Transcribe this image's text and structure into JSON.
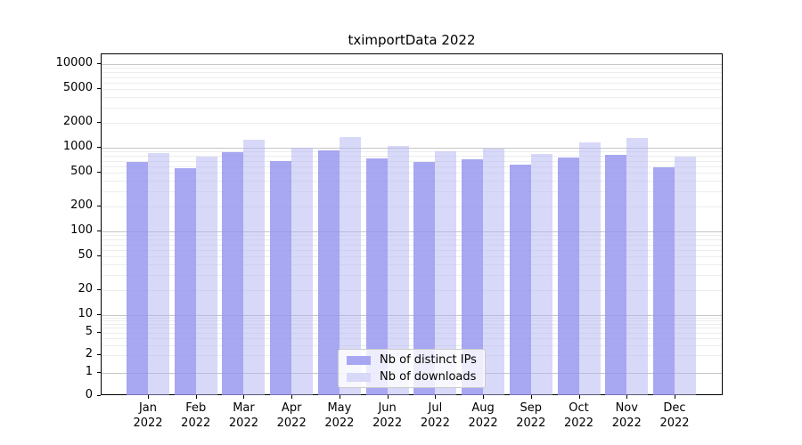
{
  "title": "tximportData 2022",
  "colors": {
    "ips_solid": "#a7a7f2",
    "ips_fill": "rgba(145,145,239,0.8)",
    "downloads_solid": "#d8d8f8",
    "downloads_fill": "rgba(177,177,241,0.5)",
    "grid_major": "#c6c6c6",
    "grid_minor": "#ededed",
    "axis": "#000000"
  },
  "legend": {
    "items": [
      {
        "label": "Nb of distinct IPs",
        "series": "ips"
      },
      {
        "label": "Nb of downloads",
        "series": "downloads"
      }
    ]
  },
  "y_axis": {
    "ticks": [
      {
        "label": "10000",
        "value": 10000
      },
      {
        "label": "5000",
        "value": 5000
      },
      {
        "label": "2000",
        "value": 2000
      },
      {
        "label": "1000",
        "value": 1000
      },
      {
        "label": "500",
        "value": 500
      },
      {
        "label": "200",
        "value": 200
      },
      {
        "label": "100",
        "value": 100
      },
      {
        "label": "50",
        "value": 50
      },
      {
        "label": "20",
        "value": 20
      },
      {
        "label": "10",
        "value": 10
      },
      {
        "label": "5",
        "value": 5
      },
      {
        "label": "2",
        "value": 2
      },
      {
        "label": "1",
        "value": 1
      },
      {
        "label": "0",
        "value": 0
      }
    ]
  },
  "x_axis": {
    "year": "2022",
    "months": [
      "Jan",
      "Feb",
      "Mar",
      "Apr",
      "May",
      "Jun",
      "Jul",
      "Aug",
      "Sep",
      "Oct",
      "Nov",
      "Dec"
    ]
  },
  "chart_data": {
    "type": "bar",
    "title": "tximportData 2022",
    "categories": [
      "Jan 2022",
      "Feb 2022",
      "Mar 2022",
      "Apr 2022",
      "May 2022",
      "Jun 2022",
      "Jul 2022",
      "Aug 2022",
      "Sep 2022",
      "Oct 2022",
      "Nov 2022",
      "Dec 2022"
    ],
    "series": [
      {
        "name": "Nb of distinct IPs",
        "color": "#a7a7f2",
        "values": [
          680,
          570,
          880,
          690,
          920,
          750,
          675,
          735,
          630,
          755,
          820,
          580
        ]
      },
      {
        "name": "Nb of downloads",
        "color": "#d8d8f8",
        "values": [
          855,
          775,
          1250,
          990,
          1330,
          1050,
          910,
          980,
          845,
          1170,
          1320,
          790
        ]
      }
    ],
    "ylabel": "",
    "xlabel": "",
    "yscale": "log (compressed below 10, zero baseline)",
    "ylim": [
      0,
      10000
    ],
    "grid": true,
    "legend_position": "lower center"
  }
}
